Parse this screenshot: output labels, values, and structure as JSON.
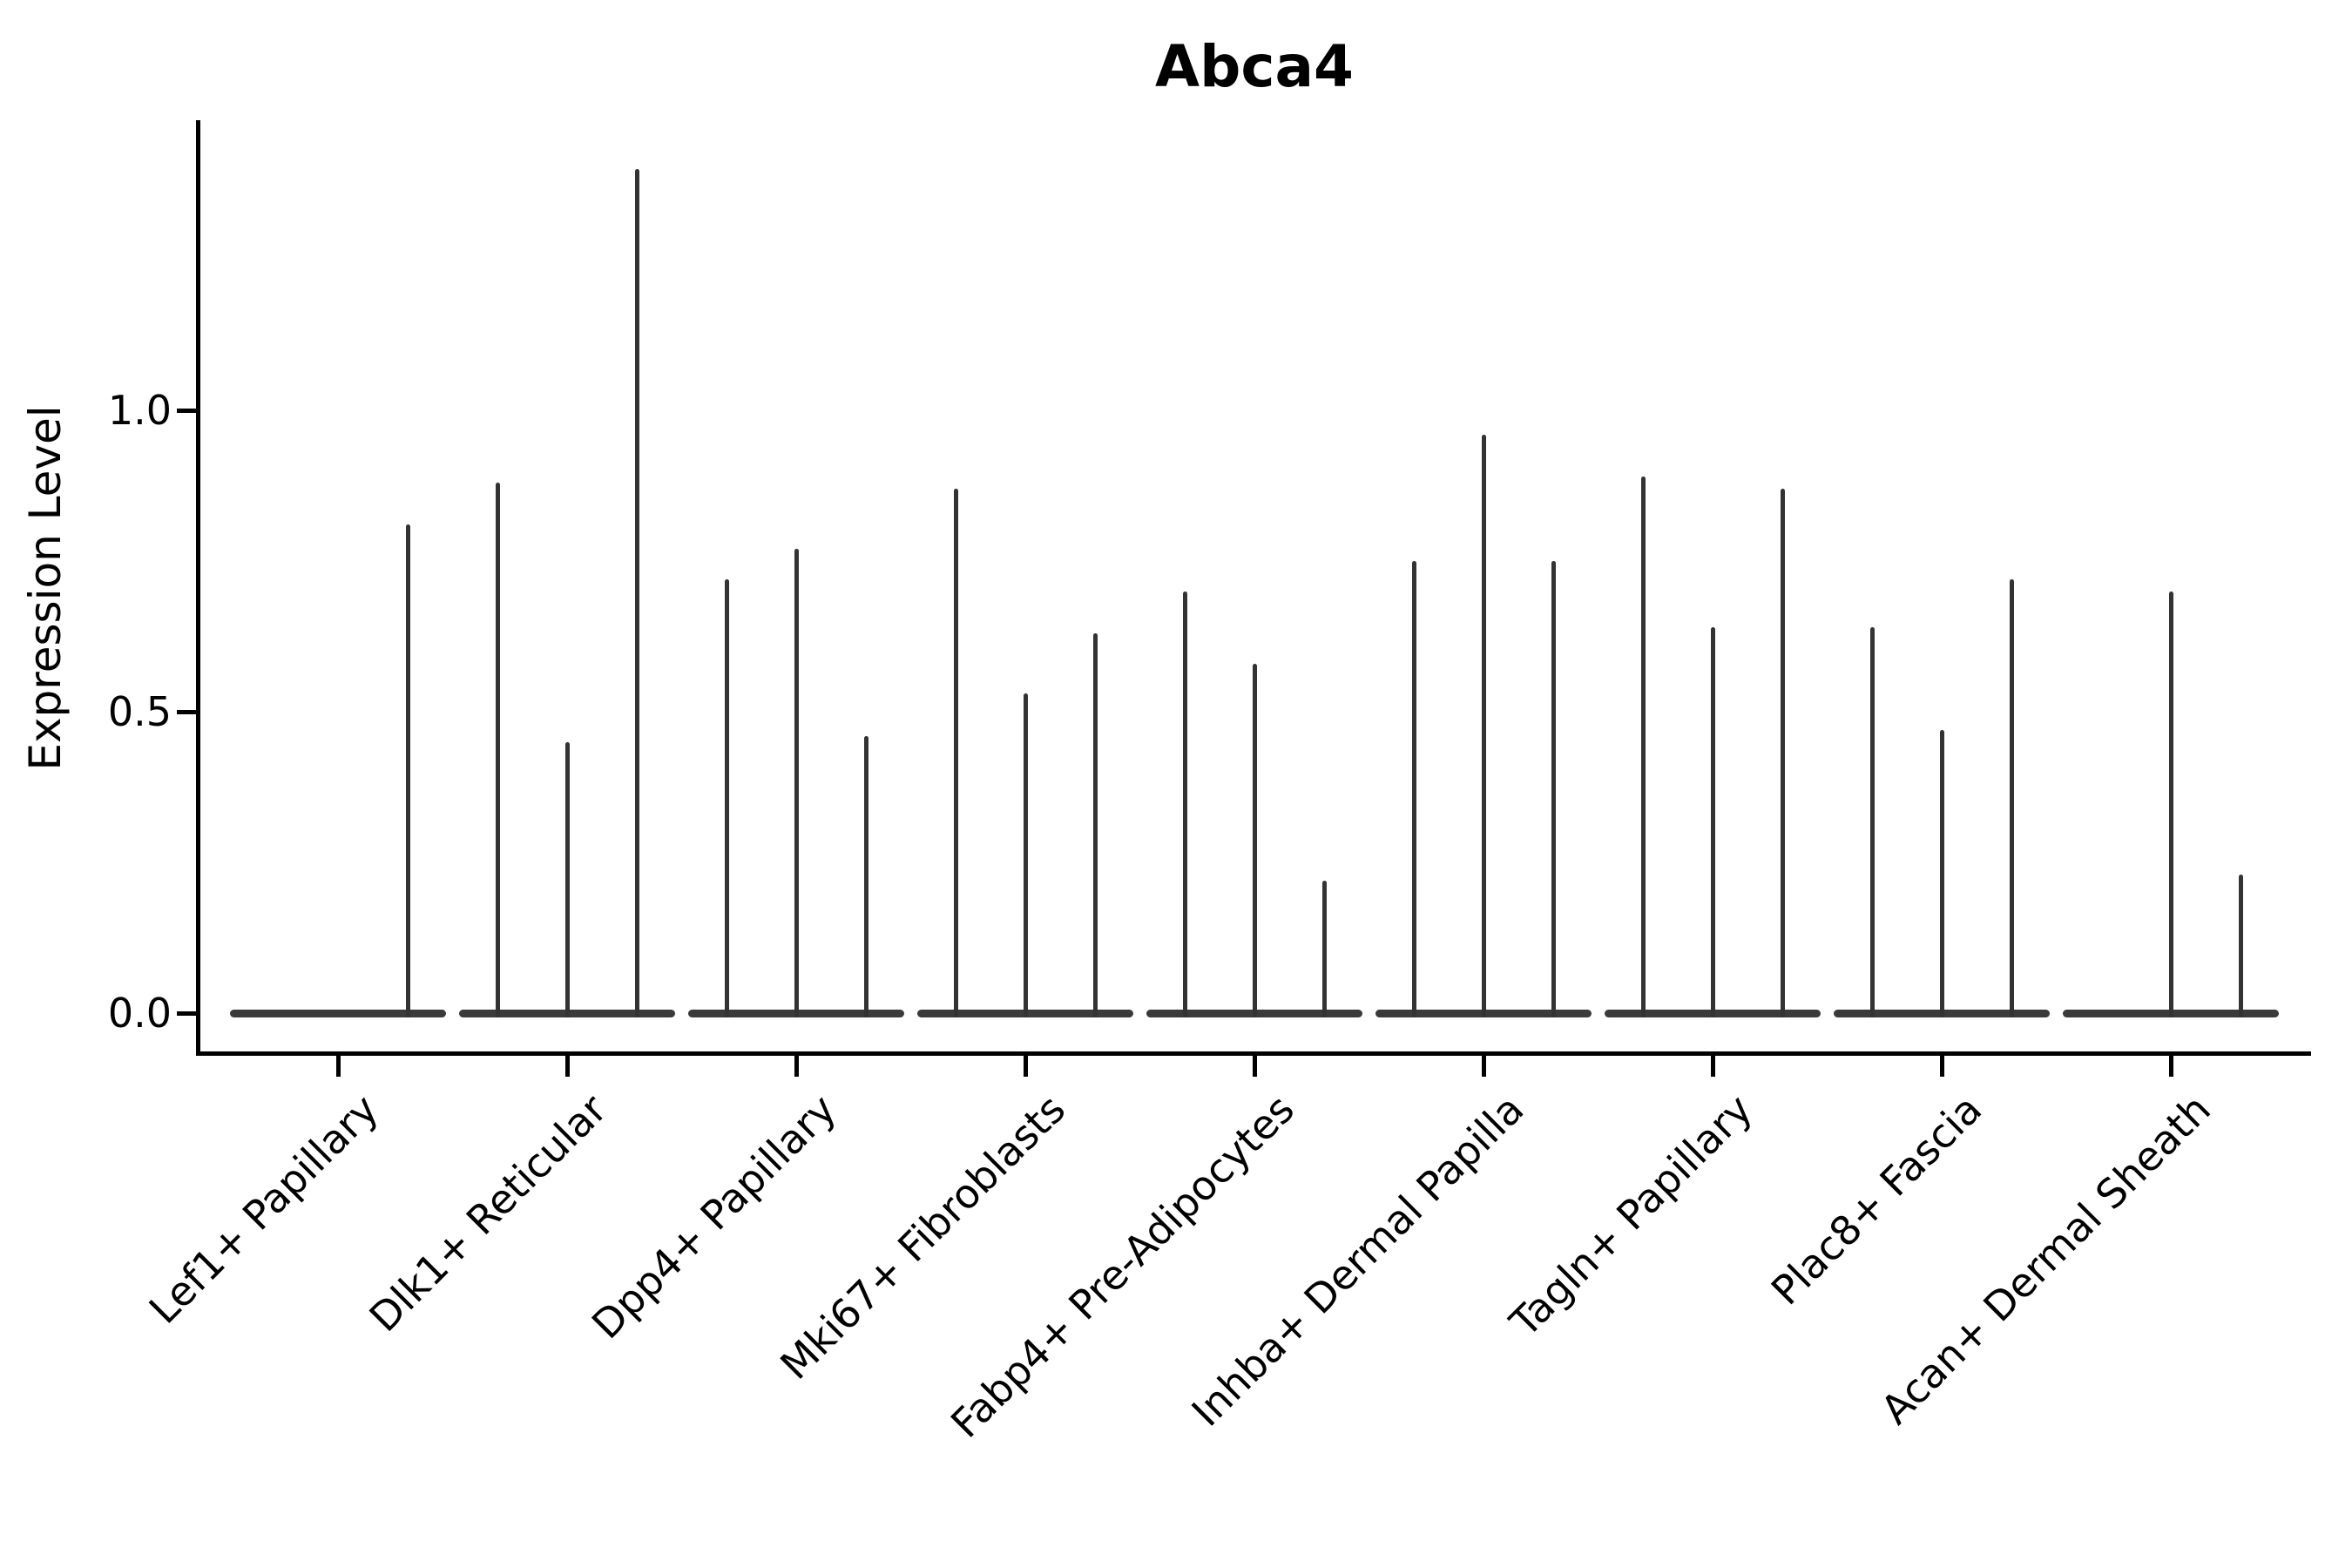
{
  "title": "Abca4",
  "chart_data": {
    "type": "violin",
    "title": "Abca4",
    "ylabel": "Expression Level",
    "xlabel": "",
    "yticks": [
      0.0,
      0.5,
      1.0
    ],
    "ytick_labels": [
      "0.0",
      "0.5",
      "1.0"
    ],
    "ylim": [
      -0.07,
      1.48
    ],
    "grid": false,
    "legend": "none",
    "violins_per_category": 3,
    "categories": [
      "Lef1+ Papillary",
      "Dlk1+ Reticular",
      "Dpp4+ Papillary",
      "Mki67+ Fibroblasts",
      "Fabp4+ Pre-Adipocytes",
      "Inhba+ Dermal Papilla",
      "Tagln+ Papillary",
      "Plac8+ Fascia",
      "Acan+ Dermal Sheath"
    ],
    "series": [
      {
        "name": "Lef1+ Papillary",
        "max_expression": [
          0.0,
          0.0,
          0.81
        ]
      },
      {
        "name": "Dlk1+ Reticular",
        "max_expression": [
          0.88,
          0.45,
          1.4
        ]
      },
      {
        "name": "Dpp4+ Papillary",
        "max_expression": [
          0.72,
          0.77,
          0.46
        ]
      },
      {
        "name": "Mki67+ Fibroblasts",
        "max_expression": [
          0.87,
          0.53,
          0.63
        ]
      },
      {
        "name": "Fabp4+ Pre-Adipocytes",
        "max_expression": [
          0.7,
          0.58,
          0.22
        ]
      },
      {
        "name": "Inhba+ Dermal Papilla",
        "max_expression": [
          0.75,
          0.96,
          0.75
        ]
      },
      {
        "name": "Tagln+ Papillary",
        "max_expression": [
          0.89,
          0.64,
          0.87
        ]
      },
      {
        "name": "Plac8+ Fascia",
        "max_expression": [
          0.64,
          0.47,
          0.72
        ]
      },
      {
        "name": "Acan+ Dermal Sheath",
        "max_expression": [
          0.0,
          0.7,
          0.23
        ]
      }
    ],
    "colors": {
      "violin_body": "#3a3a3a",
      "spike": "#333333",
      "spine": "#000000",
      "text": "#000000",
      "background": "#ffffff"
    }
  }
}
